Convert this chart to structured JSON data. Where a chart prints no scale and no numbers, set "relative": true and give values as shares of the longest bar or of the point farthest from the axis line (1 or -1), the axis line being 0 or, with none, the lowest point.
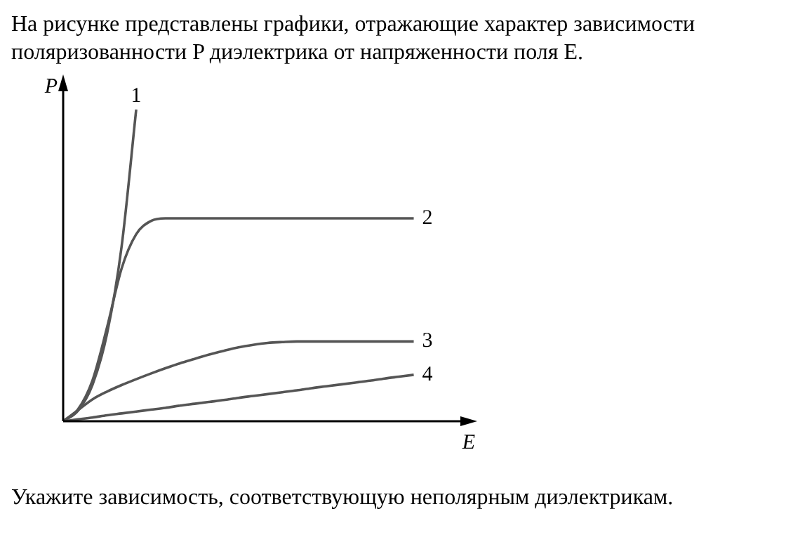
{
  "chart_data": {
    "type": "line",
    "relative": true,
    "title": "На рисунке представлены графики, отражающие характер зависимости поляризованности P диэлектрика от напряженности поля E.",
    "xlabel": "E",
    "ylabel": "P",
    "categories": [
      null,
      null,
      null,
      null,
      null,
      null,
      null,
      null,
      null,
      null,
      null,
      null,
      null,
      null,
      null,
      null,
      null,
      null,
      null,
      null,
      null,
      null,
      null,
      null,
      null,
      null,
      null,
      null
    ],
    "series": [
      {
        "name": "1",
        "color": "#555555",
        "values": [
          0,
          0.033,
          0.116,
          0.28,
          0.56,
          1,
          null,
          null,
          null,
          null,
          null,
          null,
          null,
          null,
          null,
          null,
          null,
          null,
          null,
          null,
          null,
          null,
          null,
          null,
          null,
          null,
          null,
          null
        ]
      },
      {
        "name": "2",
        "color": "#555555",
        "values": [
          0,
          0.037,
          0.13,
          0.3,
          0.49,
          0.6,
          0.642,
          0.651,
          0.651,
          0.651,
          0.651,
          0.651,
          0.651,
          0.651,
          0.651,
          0.651,
          0.651,
          0.651,
          0.651,
          0.651,
          0.651,
          0.651,
          0.651,
          0.651,
          0.651,
          null,
          null,
          null
        ]
      },
      {
        "name": "3",
        "color": "#555555",
        "values": [
          0,
          0.035,
          0.07,
          0.095,
          0.116,
          0.135,
          0.153,
          0.17,
          0.186,
          0.2,
          0.214,
          0.226,
          0.237,
          0.245,
          0.251,
          0.254,
          0.256,
          0.256,
          0.256,
          0.256,
          0.256,
          0.256,
          0.256,
          0.256,
          0.256,
          null,
          null,
          null
        ]
      },
      {
        "name": "4",
        "color": "#555555",
        "values": [
          0,
          0.006,
          0.012,
          0.019,
          0.025,
          0.031,
          0.037,
          0.043,
          0.05,
          0.056,
          0.062,
          0.068,
          0.075,
          0.081,
          0.087,
          0.093,
          0.099,
          0.106,
          0.112,
          0.118,
          0.124,
          0.13,
          0.137,
          0.143,
          0.149,
          null,
          null,
          null
        ]
      }
    ],
    "marker": "none",
    "line_style": "solid",
    "legend": false,
    "annotations": [
      "Укажите зависимость, соответствующую неполярным диэлектрикам."
    ]
  }
}
